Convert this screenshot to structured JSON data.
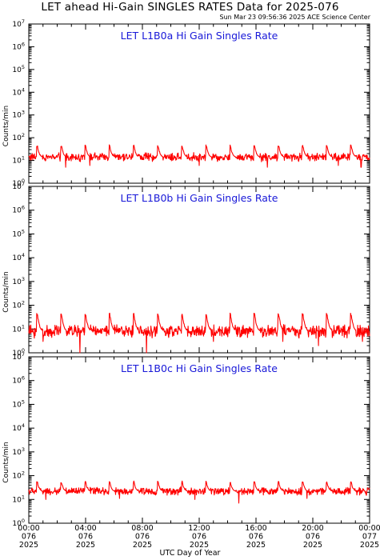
{
  "title": "LET ahead Hi-Gain SINGLES RATES Data for 2025-076",
  "timestamp": "Sun Mar 23 09:56:36 2025 ACE Science Center",
  "xlabel": "UTC Day of Year",
  "colors": {
    "series": "#ff0000",
    "panel_title": "#1818d8",
    "axes": "#000000"
  },
  "chart_data": [
    {
      "type": "line",
      "title": "LET L1B0a Hi Gain Singles Rate",
      "ylabel": "Counts/min",
      "yscale": "log",
      "ylim": [
        1,
        10000000
      ],
      "yticks": [
        {
          "base": "10",
          "exp": "0"
        },
        {
          "base": "10",
          "exp": "1"
        },
        {
          "base": "10",
          "exp": "2"
        },
        {
          "base": "10",
          "exp": "3"
        },
        {
          "base": "10",
          "exp": "4"
        },
        {
          "base": "10",
          "exp": "5"
        },
        {
          "base": "10",
          "exp": "6"
        },
        {
          "base": "10",
          "exp": "7"
        }
      ],
      "xlim_hours": [
        0,
        24
      ],
      "series": [
        {
          "baseline": 14,
          "spike_peak": 45,
          "spike_hours": [
            0.6,
            2.3,
            4.0,
            5.7,
            7.4,
            9.1,
            10.8,
            12.5,
            14.2,
            15.9,
            17.6,
            19.3,
            21.0,
            22.7
          ],
          "noise_factor": 1.35,
          "dropouts": [
            {
              "hour": 2.6,
              "value": 5
            },
            {
              "hour": 4.3,
              "value": 6
            },
            {
              "hour": 12.0,
              "value": 6
            },
            {
              "hour": 16.8,
              "value": 5
            },
            {
              "hour": 21.8,
              "value": 6
            },
            {
              "hour": 23.4,
              "value": 5
            }
          ]
        }
      ]
    },
    {
      "type": "line",
      "title": "LET L1B0b Hi Gain Singles Rate",
      "ylabel": "Counts/min",
      "yscale": "log",
      "ylim": [
        1,
        10000000
      ],
      "yticks": [
        {
          "base": "10",
          "exp": "0"
        },
        {
          "base": "10",
          "exp": "1"
        },
        {
          "base": "10",
          "exp": "2"
        },
        {
          "base": "10",
          "exp": "3"
        },
        {
          "base": "10",
          "exp": "4"
        },
        {
          "base": "10",
          "exp": "5"
        },
        {
          "base": "10",
          "exp": "6"
        },
        {
          "base": "10",
          "exp": "7"
        }
      ],
      "xlim_hours": [
        0,
        24
      ],
      "series": [
        {
          "baseline": 8,
          "spike_peak": 42,
          "spike_hours": [
            0.6,
            2.3,
            4.0,
            5.7,
            7.4,
            9.1,
            10.8,
            12.5,
            14.2,
            15.9,
            17.6,
            19.3,
            21.0,
            22.7
          ],
          "noise_factor": 1.55,
          "dropouts": [
            {
              "hour": 1.0,
              "value": 3
            },
            {
              "hour": 3.6,
              "value": 1
            },
            {
              "hour": 8.3,
              "value": 1
            },
            {
              "hour": 13.0,
              "value": 3
            },
            {
              "hour": 17.9,
              "value": 3
            },
            {
              "hour": 20.4,
              "value": 2
            },
            {
              "hour": 23.5,
              "value": 3
            }
          ]
        }
      ]
    },
    {
      "type": "line",
      "title": "LET L1B0c Hi Gain Singles Rate",
      "ylabel": "Counts/min",
      "yscale": "log",
      "ylim": [
        1,
        10000000
      ],
      "yticks": [
        {
          "base": "10",
          "exp": "0"
        },
        {
          "base": "10",
          "exp": "1"
        },
        {
          "base": "10",
          "exp": "2"
        },
        {
          "base": "10",
          "exp": "3"
        },
        {
          "base": "10",
          "exp": "4"
        },
        {
          "base": "10",
          "exp": "5"
        },
        {
          "base": "10",
          "exp": "6"
        },
        {
          "base": "10",
          "exp": "7"
        }
      ],
      "xlim_hours": [
        0,
        24
      ],
      "series": [
        {
          "baseline": 22,
          "spike_peak": 55,
          "spike_hours": [
            0.6,
            2.3,
            4.0,
            5.7,
            7.4,
            9.1,
            10.8,
            12.5,
            14.2,
            15.9,
            17.6,
            19.3,
            21.0,
            22.7
          ],
          "noise_factor": 1.3,
          "dropouts": [
            {
              "hour": 1.2,
              "value": 10
            },
            {
              "hour": 6.4,
              "value": 11
            },
            {
              "hour": 11.7,
              "value": 10
            },
            {
              "hour": 14.8,
              "value": 7
            },
            {
              "hour": 19.6,
              "value": 11
            }
          ]
        }
      ]
    }
  ],
  "xticks": [
    {
      "hour": 0,
      "time": "00:00",
      "doy": "076",
      "year": "2025"
    },
    {
      "hour": 4,
      "time": "04:00",
      "doy": "076",
      "year": "2025"
    },
    {
      "hour": 8,
      "time": "08:00",
      "doy": "076",
      "year": "2025"
    },
    {
      "hour": 12,
      "time": "12:00",
      "doy": "076",
      "year": "2025"
    },
    {
      "hour": 16,
      "time": "16:00",
      "doy": "076",
      "year": "2025"
    },
    {
      "hour": 20,
      "time": "20:00",
      "doy": "076",
      "year": "2025"
    },
    {
      "hour": 24,
      "time": "00:00",
      "doy": "077",
      "year": "2025"
    }
  ]
}
